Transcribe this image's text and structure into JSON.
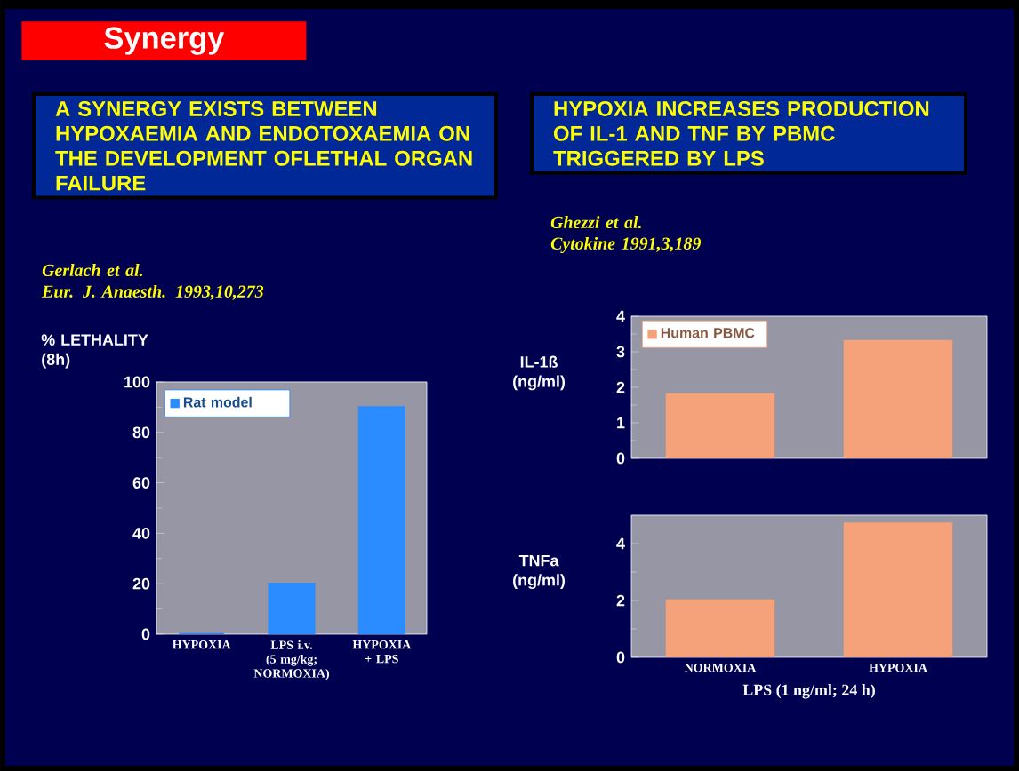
{
  "chart_data": [
    {
      "type": "bar",
      "title": "A SYNERGY EXISTS BETWEEN HYPOXAEMIA AND ENDOTOXAEMIA ON THE DEVELOPMENT OFLETHAL ORGAN FAILURE",
      "subtitle": "Gerlach et al.\nEur. J. Anaesth. 1993,10,273",
      "annotations": [
        "Synergy"
      ],
      "ylabel": "% LETHALITY (8h)",
      "categories": [
        "HYPOXIA",
        "LPS i.v. (5 mg/kg; NORMOXIA)",
        "HYPOXIA + LPS"
      ],
      "series": [
        {
          "name": "Rat model",
          "color": "#2a8cff",
          "values": [
            0,
            20,
            90
          ]
        }
      ],
      "ylim": [
        0,
        100
      ],
      "yticks": [
        0,
        20,
        40,
        60,
        80,
        100
      ],
      "legend": "top left"
    },
    {
      "type": "bar",
      "title": "HYPOXIA INCREASES PRODUCTION OF IL-1 AND TNF BY PBMC TRIGGERED BY LPS",
      "subtitle": "Ghezzi et al.\nCytokine 1991,3,189",
      "ylabel": "IL-1ß (ng/ml)",
      "categories": [
        null,
        null
      ],
      "series": [
        {
          "name": "Human PBMC",
          "color": "#f5a27a",
          "values": [
            1.8,
            3.3
          ]
        }
      ],
      "ylim": [
        0,
        4
      ],
      "yticks": [
        0,
        1,
        2,
        3,
        4
      ],
      "legend": "top left",
      "tick_labels": "y"
    },
    {
      "type": "bar",
      "ylabel": "TNFa (ng/ml)",
      "xlabel": "LPS (1 ng/ml; 24 h)",
      "categories": [
        "NORMOXIA",
        "HYPOXIA"
      ],
      "series": [
        {
          "color": "#f5a27a",
          "values": [
            2.0,
            4.7
          ]
        }
      ],
      "ylim": [
        0,
        5
      ],
      "yticks": [
        0,
        2,
        4
      ]
    }
  ]
}
